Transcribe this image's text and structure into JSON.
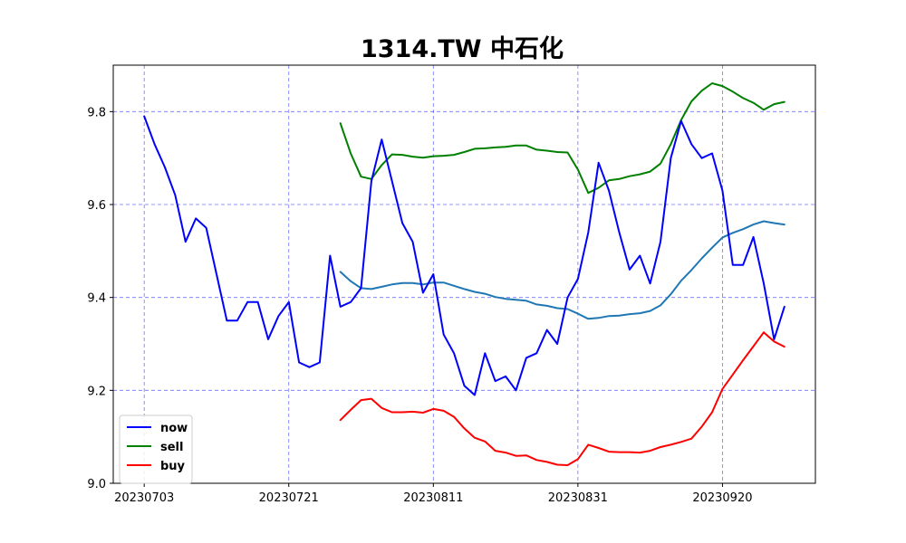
{
  "chart_data": {
    "type": "line",
    "title": "1314.TW 中石化",
    "xlabel": "",
    "ylabel": "",
    "x_ticks": [
      "20230703",
      "20230721",
      "20230811",
      "20230831",
      "20230920"
    ],
    "y_ticks": [
      "9.0",
      "9.2",
      "9.4",
      "9.6",
      "9.8"
    ],
    "ylim": [
      9.0,
      9.9
    ],
    "grid": true,
    "legend_position": "lower-left",
    "series": [
      {
        "name": "now",
        "color": "#0000ff",
        "values": [
          [
            0,
            9.79
          ],
          [
            1,
            9.73
          ],
          [
            2,
            9.68
          ],
          [
            3,
            9.62
          ],
          [
            4,
            9.52
          ],
          [
            5,
            9.57
          ],
          [
            6,
            9.55
          ],
          [
            7,
            9.45
          ],
          [
            8,
            9.35
          ],
          [
            9,
            9.35
          ],
          [
            10,
            9.39
          ],
          [
            11,
            9.39
          ],
          [
            12,
            9.31
          ],
          [
            13,
            9.36
          ],
          [
            14,
            9.39
          ],
          [
            15,
            9.26
          ],
          [
            16,
            9.25
          ],
          [
            17,
            9.26
          ],
          [
            18,
            9.49
          ],
          [
            19,
            9.38
          ],
          [
            20,
            9.39
          ],
          [
            21,
            9.42
          ],
          [
            22,
            9.65
          ],
          [
            23,
            9.74
          ],
          [
            24,
            9.65
          ],
          [
            25,
            9.56
          ],
          [
            26,
            9.52
          ],
          [
            27,
            9.41
          ],
          [
            28,
            9.45
          ],
          [
            29,
            9.32
          ],
          [
            30,
            9.28
          ],
          [
            31,
            9.21
          ],
          [
            32,
            9.19
          ],
          [
            33,
            9.28
          ],
          [
            34,
            9.22
          ],
          [
            35,
            9.23
          ],
          [
            36,
            9.2
          ],
          [
            37,
            9.27
          ],
          [
            38,
            9.28
          ],
          [
            39,
            9.33
          ],
          [
            40,
            9.3
          ],
          [
            41,
            9.4
          ],
          [
            42,
            9.44
          ],
          [
            43,
            9.54
          ],
          [
            44,
            9.69
          ],
          [
            45,
            9.63
          ],
          [
            46,
            9.54
          ],
          [
            47,
            9.46
          ],
          [
            48,
            9.49
          ],
          [
            49,
            9.43
          ],
          [
            50,
            9.52
          ],
          [
            51,
            9.7
          ],
          [
            52,
            9.78
          ],
          [
            53,
            9.73
          ],
          [
            54,
            9.7
          ],
          [
            55,
            9.71
          ],
          [
            56,
            9.63
          ],
          [
            57,
            9.47
          ],
          [
            58,
            9.47
          ],
          [
            59,
            9.53
          ],
          [
            60,
            9.43
          ],
          [
            61,
            9.31
          ],
          [
            62,
            9.38
          ]
        ]
      },
      {
        "name": "sell",
        "color": "#008000",
        "values": [
          [
            19,
            9.775
          ],
          [
            20,
            9.71
          ],
          [
            21,
            9.66
          ],
          [
            22,
            9.655
          ],
          [
            23,
            9.685
          ],
          [
            24,
            9.708
          ],
          [
            25,
            9.707
          ],
          [
            26,
            9.703
          ],
          [
            27,
            9.701
          ],
          [
            28,
            9.704
          ],
          [
            29,
            9.705
          ],
          [
            30,
            9.707
          ],
          [
            31,
            9.713
          ],
          [
            32,
            9.72
          ],
          [
            33,
            9.721
          ],
          [
            34,
            9.723
          ],
          [
            35,
            9.724
          ],
          [
            36,
            9.727
          ],
          [
            37,
            9.727
          ],
          [
            38,
            9.718
          ],
          [
            39,
            9.716
          ],
          [
            40,
            9.713
          ],
          [
            41,
            9.712
          ],
          [
            42,
            9.675
          ],
          [
            43,
            9.625
          ],
          [
            44,
            9.636
          ],
          [
            45,
            9.652
          ],
          [
            46,
            9.655
          ],
          [
            47,
            9.661
          ],
          [
            48,
            9.665
          ],
          [
            49,
            9.671
          ],
          [
            50,
            9.688
          ],
          [
            51,
            9.73
          ],
          [
            52,
            9.782
          ],
          [
            53,
            9.822
          ],
          [
            54,
            9.845
          ],
          [
            55,
            9.861
          ],
          [
            56,
            9.855
          ],
          [
            57,
            9.843
          ],
          [
            58,
            9.829
          ],
          [
            59,
            9.819
          ],
          [
            60,
            9.804
          ],
          [
            61,
            9.816
          ],
          [
            62,
            9.821
          ]
        ]
      },
      {
        "name": "buy",
        "color": "#ff0000",
        "values": [
          [
            19,
            9.136
          ],
          [
            20,
            9.158
          ],
          [
            21,
            9.179
          ],
          [
            22,
            9.182
          ],
          [
            23,
            9.162
          ],
          [
            24,
            9.153
          ],
          [
            25,
            9.153
          ],
          [
            26,
            9.154
          ],
          [
            27,
            9.152
          ],
          [
            28,
            9.16
          ],
          [
            29,
            9.156
          ],
          [
            30,
            9.143
          ],
          [
            31,
            9.118
          ],
          [
            32,
            9.098
          ],
          [
            33,
            9.09
          ],
          [
            34,
            9.07
          ],
          [
            35,
            9.066
          ],
          [
            36,
            9.059
          ],
          [
            37,
            9.06
          ],
          [
            38,
            9.05
          ],
          [
            39,
            9.046
          ],
          [
            40,
            9.04
          ],
          [
            41,
            9.039
          ],
          [
            42,
            9.052
          ],
          [
            43,
            9.083
          ],
          [
            44,
            9.076
          ],
          [
            45,
            9.068
          ],
          [
            46,
            9.067
          ],
          [
            47,
            9.067
          ],
          [
            48,
            9.066
          ],
          [
            49,
            9.07
          ],
          [
            50,
            9.078
          ],
          [
            51,
            9.083
          ],
          [
            52,
            9.089
          ],
          [
            53,
            9.096
          ],
          [
            54,
            9.122
          ],
          [
            55,
            9.153
          ],
          [
            56,
            9.203
          ],
          [
            57,
            9.234
          ],
          [
            58,
            9.265
          ],
          [
            59,
            9.295
          ],
          [
            60,
            9.325
          ],
          [
            61,
            9.305
          ],
          [
            62,
            9.294
          ]
        ]
      },
      {
        "color": "#1f77b4",
        "values": [
          [
            19,
            9.455
          ],
          [
            20,
            9.435
          ],
          [
            21,
            9.42
          ],
          [
            22,
            9.418
          ],
          [
            23,
            9.423
          ],
          [
            24,
            9.428
          ],
          [
            25,
            9.431
          ],
          [
            26,
            9.431
          ],
          [
            27,
            9.428
          ],
          [
            28,
            9.432
          ],
          [
            29,
            9.432
          ],
          [
            30,
            9.425
          ],
          [
            31,
            9.418
          ],
          [
            32,
            9.412
          ],
          [
            33,
            9.408
          ],
          [
            34,
            9.401
          ],
          [
            35,
            9.397
          ],
          [
            36,
            9.395
          ],
          [
            37,
            9.393
          ],
          [
            38,
            9.385
          ],
          [
            39,
            9.382
          ],
          [
            40,
            9.377
          ],
          [
            41,
            9.375
          ],
          [
            42,
            9.365
          ],
          [
            43,
            9.354
          ],
          [
            44,
            9.356
          ],
          [
            45,
            9.36
          ],
          [
            46,
            9.361
          ],
          [
            47,
            9.364
          ],
          [
            48,
            9.366
          ],
          [
            49,
            9.371
          ],
          [
            50,
            9.383
          ],
          [
            51,
            9.407
          ],
          [
            52,
            9.436
          ],
          [
            53,
            9.459
          ],
          [
            54,
            9.484
          ],
          [
            55,
            9.507
          ],
          [
            56,
            9.529
          ],
          [
            57,
            9.539
          ],
          [
            58,
            9.547
          ],
          [
            59,
            9.557
          ],
          [
            60,
            9.564
          ],
          [
            61,
            9.56
          ],
          [
            62,
            9.557
          ]
        ]
      }
    ]
  }
}
